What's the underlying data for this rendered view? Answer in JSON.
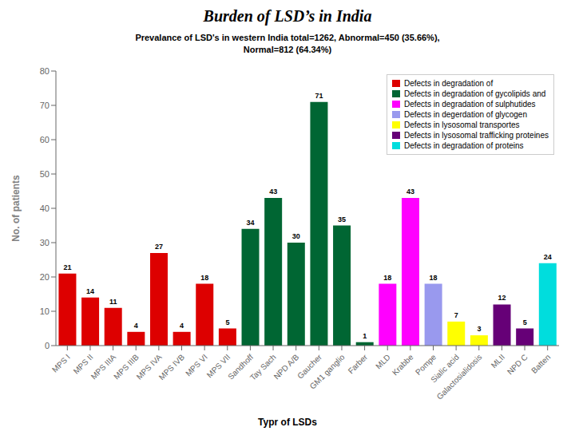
{
  "chart_data": {
    "type": "bar",
    "title": "Burden of LSD’s in India",
    "subtitle": "Prevalance of LSD's in western India total=1262, Abnormal=450 (35.66%),\nNormal=812 (64.34%)",
    "xlabel": "Typr of LSDs",
    "ylabel": "No. of patients",
    "categories": [
      "MPS I",
      "MPS II",
      "MPS IIIA",
      "MPS IIIB",
      "MPS IVA",
      "MPS IVB",
      "MPS VI",
      "MPS VII",
      "Sandhoff",
      "Tay Sach",
      "NPD A/B",
      "Gaucher",
      "GM1 ganglio",
      "Farber",
      "MLD",
      "Krabbe",
      "Pompe",
      "Sialic acid",
      "Galactosialidosis",
      "MLII",
      "NPD C",
      "Batten"
    ],
    "values": [
      21,
      14,
      11,
      4,
      27,
      4,
      18,
      5,
      34,
      43,
      30,
      71,
      35,
      1,
      18,
      43,
      18,
      7,
      3,
      12,
      5,
      24
    ],
    "colors": [
      "#dd0000",
      "#dd0000",
      "#dd0000",
      "#dd0000",
      "#dd0000",
      "#dd0000",
      "#dd0000",
      "#dd0000",
      "#006633",
      "#006633",
      "#006633",
      "#006633",
      "#006633",
      "#006633",
      "#ff00ff",
      "#ff00ff",
      "#9999ee",
      "#ffff00",
      "#ffff00",
      "#660077",
      "#660077",
      "#00dddd"
    ],
    "legend_entries": [
      {
        "name": "Defects in degradation of",
        "color": "#dd0000"
      },
      {
        "name": "Defects in degradation of gycolipids and",
        "color": "#006633"
      },
      {
        "name": "Defects in degradation of sulphutides",
        "color": "#ff00ff"
      },
      {
        "name": "Defects in degerdation of glycogen",
        "color": "#9999ee"
      },
      {
        "name": "Defects in lysosomal transportes",
        "color": "#ffff00"
      },
      {
        "name": "Defects in lysosomal trafficking proteines",
        "color": "#660077"
      },
      {
        "name": "Defects in degradation of proteins",
        "color": "#00dddd"
      }
    ],
    "ylim": [
      0,
      80
    ],
    "yticks": [
      0,
      10,
      20,
      30,
      40,
      50,
      60,
      70,
      80
    ],
    "grid": false,
    "legend": "upper right",
    "data_labels": true
  }
}
